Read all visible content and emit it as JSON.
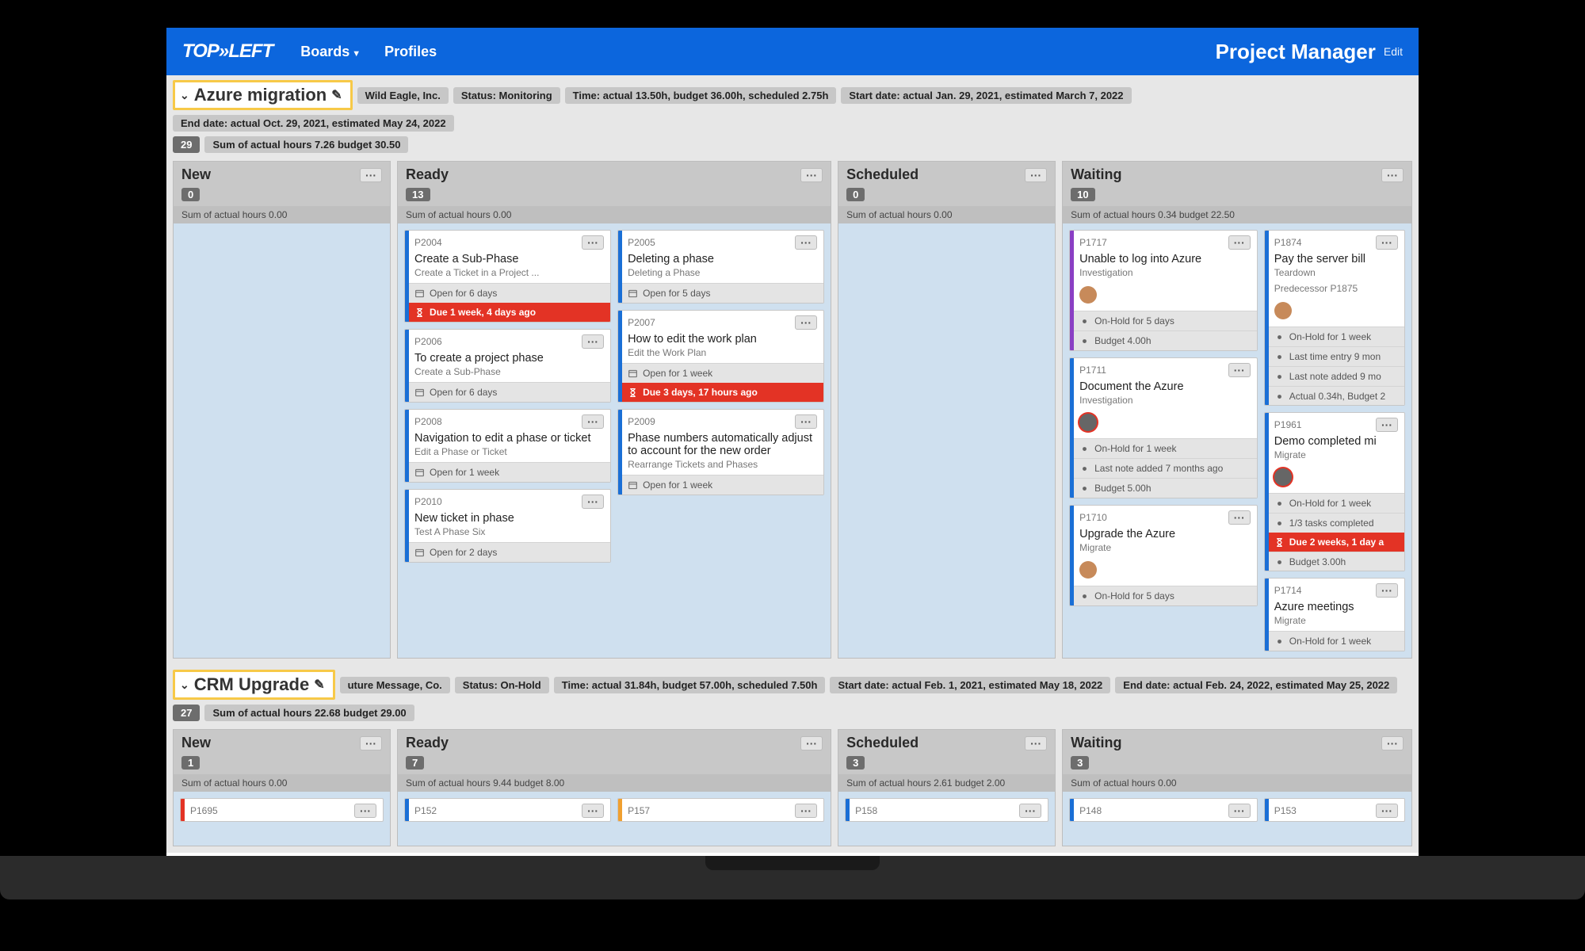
{
  "nav": {
    "logo": "TOP»LEFT",
    "boards": "Boards",
    "profiles": "Profiles",
    "title": "Project Manager",
    "edit": "Edit"
  },
  "projects": [
    {
      "name": "Azure migration",
      "company": "Wild Eagle, Inc.",
      "status": "Status: Monitoring",
      "time": "Time: actual 13.50h, budget 36.00h, scheduled 2.75h",
      "start": "Start date: actual Jan. 29, 2021, estimated March 7, 2022",
      "end": "End date: actual Oct. 29, 2021, estimated May 24, 2022",
      "count": "29",
      "sum": "Sum of actual hours 7.26  budget 30.50",
      "columns": [
        {
          "title": "New",
          "count": "0",
          "sub": "Sum of actual hours 0.00"
        },
        {
          "title": "Ready",
          "count": "13",
          "sub": "Sum of actual hours 0.00"
        },
        {
          "title": "Scheduled",
          "count": "0",
          "sub": "Sum of actual hours 0.00"
        },
        {
          "title": "Waiting",
          "count": "10",
          "sub": "Sum of actual hours 0.34  budget 22.50"
        }
      ],
      "ready_a": [
        {
          "id": "P2004",
          "title": "Create a Sub-Phase",
          "sub": "Create a Ticket in a Project ...",
          "open": "Open for 6 days",
          "due": "Due 1 week, 4 days ago",
          "stripe": "#1a6fd6"
        },
        {
          "id": "P2006",
          "title": "To create a project phase",
          "sub": "Create a Sub-Phase",
          "open": "Open for 6 days",
          "stripe": "#1a6fd6"
        },
        {
          "id": "P2008",
          "title": "Navigation to edit a phase or ticket",
          "sub": "Edit a Phase or Ticket",
          "open": "Open for 1 week",
          "stripe": "#1a6fd6"
        },
        {
          "id": "P2010",
          "title": "New ticket in phase",
          "sub": "Test A Phase Six",
          "open": "Open for 2 days",
          "stripe": "#1a6fd6"
        }
      ],
      "ready_b": [
        {
          "id": "P2005",
          "title": "Deleting a phase",
          "sub": "Deleting a Phase",
          "open": "Open for 5 days",
          "stripe": "#1a6fd6"
        },
        {
          "id": "P2007",
          "title": "How to edit the work plan",
          "sub": "Edit the Work Plan",
          "open": "Open for 1 week",
          "due": "Due 3 days, 17 hours ago",
          "stripe": "#1a6fd6"
        },
        {
          "id": "P2009",
          "title": "Phase numbers automatically adjust to account for the new order",
          "sub": "Rearrange Tickets and Phases",
          "open": "Open for 1 week",
          "stripe": "#1a6fd6"
        }
      ],
      "waiting_a": [
        {
          "id": "P1717",
          "title": "Unable to log into Azure",
          "sub": "Investigation",
          "avatar": true,
          "stripe": "#8a3fc4",
          "m": [
            "On-Hold for 5 days",
            "Budget 4.00h"
          ]
        },
        {
          "id": "P1711",
          "title": "Document the Azure",
          "sub": "Investigation",
          "avatar_ring": true,
          "stripe": "#1a6fd6",
          "m": [
            "On-Hold for 1 week",
            "Last note added 7 months ago",
            "Budget 5.00h"
          ]
        },
        {
          "id": "P1710",
          "title": "Upgrade the Azure",
          "sub": "Migrate",
          "avatar": true,
          "stripe": "#1a6fd6",
          "m": [
            "On-Hold for 5 days"
          ]
        }
      ],
      "waiting_b": [
        {
          "id": "P1874",
          "title": "Pay the server bill",
          "sub": "Teardown",
          "pred": "Predecessor P1875",
          "avatar": true,
          "stripe": "#1a6fd6",
          "m": [
            "On-Hold for 1 week",
            "Last time entry 9 mon",
            "Last note added 9 mo",
            "Actual 0.34h, Budget 2"
          ]
        },
        {
          "id": "P1961",
          "title": "Demo completed mi",
          "sub": "Migrate",
          "avatar_ring": true,
          "stripe": "#1a6fd6",
          "m": [
            "On-Hold for 1 week",
            "1/3 tasks completed"
          ],
          "due": "Due 2 weeks, 1 day a",
          "m2": [
            "Budget 3.00h"
          ]
        },
        {
          "id": "P1714",
          "title": "Azure meetings",
          "sub": "Migrate",
          "stripe": "#1a6fd6",
          "m": [
            "On-Hold for 1 week"
          ]
        }
      ]
    },
    {
      "name": "CRM Upgrade",
      "company": "uture Message, Co.",
      "status": "Status: On-Hold",
      "time": "Time: actual 31.84h, budget 57.00h, scheduled 7.50h",
      "start": "Start date: actual Feb. 1, 2021, estimated May 18, 2022",
      "end": "End date: actual Feb. 24, 2022, estimated May 25, 2022",
      "count": "27",
      "sum": "Sum of actual hours 22.68  budget 29.00",
      "columns": [
        {
          "title": "New",
          "count": "1",
          "sub": "Sum of actual hours 0.00"
        },
        {
          "title": "Ready",
          "count": "7",
          "sub": "Sum of actual hours 9.44  budget 8.00"
        },
        {
          "title": "Scheduled",
          "count": "3",
          "sub": "Sum of actual hours 2.61  budget 2.00"
        },
        {
          "title": "Waiting",
          "count": "3",
          "sub": "Sum of actual hours 0.00"
        }
      ],
      "new_ids": [
        "P1695"
      ],
      "ready_ids": [
        "P152",
        "P157"
      ],
      "scheduled_ids": [
        "P158"
      ],
      "waiting_ids": [
        "P148",
        "P153"
      ]
    }
  ],
  "colors": {
    "brand": "#0c66dd",
    "highlight": "#f7c948",
    "chip": "#c7c7c7",
    "chipDark": "#6d6d6d",
    "colBg": "#cfe0ef",
    "danger": "#e33325",
    "stripeBlue": "#1a6fd6",
    "stripePurple": "#8a3fc4",
    "stripeOrange": "#f0a030",
    "stripeRed": "#e33325"
  }
}
